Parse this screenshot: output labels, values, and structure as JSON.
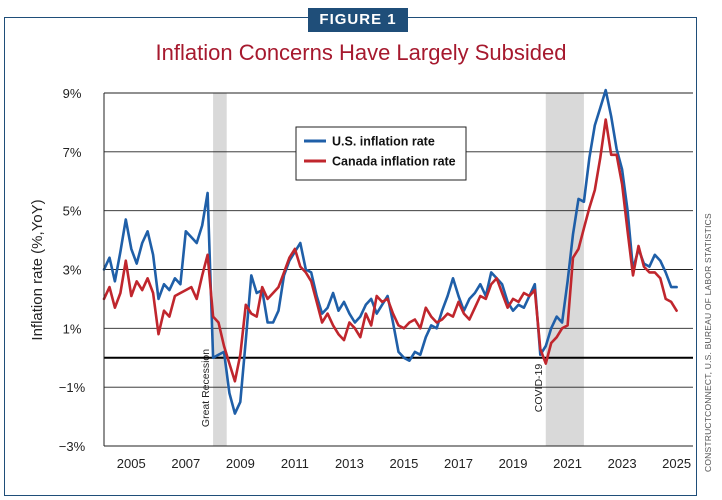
{
  "figure_label": "FIGURE 1",
  "source": "CONSTRUCTCONNECT, U.S. BUREAU OF LABOR STATISTICS",
  "colors": {
    "us": "#1f5fa8",
    "canada": "#c0262d",
    "title": "#a6192e",
    "shade": "#d9d9d9"
  },
  "chart_data": {
    "type": "line",
    "title": "Inflation Concerns Have Largely Subsided",
    "xlabel": "",
    "ylabel": "Inflation rate (%,YoY)",
    "ylim": [
      -3,
      9
    ],
    "xlim": [
      2004.0,
      2025.6
    ],
    "x_ticks": [
      2005,
      2007,
      2009,
      2011,
      2013,
      2015,
      2017,
      2019,
      2021,
      2023,
      2025
    ],
    "x_tick_labels": [
      "2005",
      "2007",
      "2009",
      "2011",
      "2013",
      "2015",
      "2017",
      "2019",
      "2021",
      "2023",
      "2025"
    ],
    "y_ticks": [
      -3,
      -1,
      1,
      3,
      5,
      7,
      9
    ],
    "y_tick_labels": [
      "−3%",
      "−1%",
      "1%",
      "3%",
      "5%",
      "7%",
      "9%"
    ],
    "grid": true,
    "zero_line": 0,
    "legend": [
      "U.S. inflation rate",
      "Canada inflation rate"
    ],
    "shaded_periods": [
      {
        "start": 2008.0,
        "end": 2008.5,
        "label": "Great Recession"
      },
      {
        "start": 2020.2,
        "end": 2021.6,
        "label": "COVID-19"
      }
    ],
    "series": [
      {
        "name": "U.S. inflation rate",
        "x": [
          2004.0,
          2004.2,
          2004.4,
          2004.6,
          2004.8,
          2005.0,
          2005.2,
          2005.4,
          2005.6,
          2005.8,
          2006.0,
          2006.2,
          2006.4,
          2006.6,
          2006.8,
          2007.0,
          2007.2,
          2007.4,
          2007.6,
          2007.8,
          2008.0,
          2008.2,
          2008.4,
          2008.6,
          2008.8,
          2009.0,
          2009.2,
          2009.4,
          2009.6,
          2009.8,
          2010.0,
          2010.2,
          2010.4,
          2010.6,
          2010.8,
          2011.0,
          2011.2,
          2011.4,
          2011.6,
          2011.8,
          2012.0,
          2012.2,
          2012.4,
          2012.6,
          2012.8,
          2013.0,
          2013.2,
          2013.4,
          2013.6,
          2013.8,
          2014.0,
          2014.2,
          2014.4,
          2014.6,
          2014.8,
          2015.0,
          2015.2,
          2015.4,
          2015.6,
          2015.8,
          2016.0,
          2016.2,
          2016.4,
          2016.6,
          2016.8,
          2017.0,
          2017.2,
          2017.4,
          2017.6,
          2017.8,
          2018.0,
          2018.2,
          2018.4,
          2018.6,
          2018.8,
          2019.0,
          2019.2,
          2019.4,
          2019.6,
          2019.8,
          2020.0,
          2020.2,
          2020.4,
          2020.6,
          2020.8,
          2021.0,
          2021.2,
          2021.4,
          2021.6,
          2021.8,
          2022.0,
          2022.2,
          2022.4,
          2022.6,
          2022.8,
          2023.0,
          2023.2,
          2023.4,
          2023.6,
          2023.8,
          2024.0,
          2024.2,
          2024.4,
          2024.6,
          2024.8,
          2025.0
        ],
        "values": [
          3.0,
          3.4,
          2.6,
          3.6,
          4.7,
          3.7,
          3.2,
          3.9,
          4.3,
          3.5,
          2.0,
          2.5,
          2.3,
          2.7,
          2.5,
          4.3,
          4.1,
          3.9,
          4.5,
          5.6,
          0.0,
          0.1,
          0.2,
          -1.2,
          -1.9,
          -1.5,
          0.6,
          2.8,
          2.2,
          2.3,
          1.2,
          1.2,
          1.6,
          2.8,
          3.3,
          3.6,
          3.9,
          3.0,
          2.9,
          2.1,
          1.5,
          1.7,
          2.2,
          1.6,
          1.9,
          1.5,
          1.2,
          1.4,
          1.8,
          2.0,
          1.5,
          1.8,
          2.1,
          1.2,
          0.2,
          0.0,
          -0.1,
          0.2,
          0.1,
          0.7,
          1.1,
          1.0,
          1.6,
          2.1,
          2.7,
          2.1,
          1.6,
          2.0,
          2.2,
          2.5,
          2.1,
          2.9,
          2.7,
          2.5,
          1.9,
          1.6,
          1.8,
          1.7,
          2.1,
          2.5,
          0.1,
          0.4,
          1.0,
          1.4,
          1.2,
          2.6,
          4.2,
          5.4,
          5.3,
          6.8,
          7.9,
          8.5,
          9.1,
          8.2,
          7.1,
          6.4,
          5.0,
          3.0,
          3.7,
          3.2,
          3.1,
          3.5,
          3.3,
          2.9,
          2.4,
          2.4
        ],
        "color": "#1f5fa8"
      },
      {
        "name": "Canada inflation rate",
        "x": [
          2004.0,
          2004.2,
          2004.4,
          2004.6,
          2004.8,
          2005.0,
          2005.2,
          2005.4,
          2005.6,
          2005.8,
          2006.0,
          2006.2,
          2006.4,
          2006.6,
          2006.8,
          2007.0,
          2007.2,
          2007.4,
          2007.6,
          2007.8,
          2008.0,
          2008.2,
          2008.4,
          2008.6,
          2008.8,
          2009.0,
          2009.2,
          2009.4,
          2009.6,
          2009.8,
          2010.0,
          2010.2,
          2010.4,
          2010.6,
          2010.8,
          2011.0,
          2011.2,
          2011.4,
          2011.6,
          2011.8,
          2012.0,
          2012.2,
          2012.4,
          2012.6,
          2012.8,
          2013.0,
          2013.2,
          2013.4,
          2013.6,
          2013.8,
          2014.0,
          2014.2,
          2014.4,
          2014.6,
          2014.8,
          2015.0,
          2015.2,
          2015.4,
          2015.6,
          2015.8,
          2016.0,
          2016.2,
          2016.4,
          2016.6,
          2016.8,
          2017.0,
          2017.2,
          2017.4,
          2017.6,
          2017.8,
          2018.0,
          2018.2,
          2018.4,
          2018.6,
          2018.8,
          2019.0,
          2019.2,
          2019.4,
          2019.6,
          2019.8,
          2020.0,
          2020.2,
          2020.4,
          2020.6,
          2020.8,
          2021.0,
          2021.2,
          2021.4,
          2021.6,
          2021.8,
          2022.0,
          2022.2,
          2022.4,
          2022.6,
          2022.8,
          2023.0,
          2023.2,
          2023.4,
          2023.6,
          2023.8,
          2024.0,
          2024.2,
          2024.4,
          2024.6,
          2024.8,
          2025.0
        ],
        "values": [
          2.0,
          2.4,
          1.7,
          2.2,
          3.3,
          2.1,
          2.6,
          2.3,
          2.7,
          2.2,
          0.8,
          1.6,
          1.4,
          2.1,
          2.2,
          2.3,
          2.4,
          2.0,
          2.8,
          3.5,
          1.4,
          1.2,
          0.4,
          -0.2,
          -0.8,
          0.1,
          1.8,
          1.5,
          1.4,
          2.4,
          2.0,
          2.2,
          2.4,
          2.9,
          3.4,
          3.7,
          3.1,
          2.9,
          2.6,
          1.9,
          1.2,
          1.5,
          1.1,
          0.8,
          0.6,
          1.2,
          1.0,
          0.7,
          1.5,
          1.1,
          2.1,
          1.9,
          2.0,
          1.5,
          1.1,
          1.0,
          1.2,
          1.3,
          1.0,
          1.7,
          1.4,
          1.2,
          1.3,
          1.5,
          1.4,
          1.9,
          1.5,
          1.3,
          1.7,
          2.1,
          2.0,
          2.5,
          2.7,
          2.2,
          1.7,
          2.0,
          1.9,
          2.2,
          2.1,
          2.3,
          0.3,
          -0.2,
          0.5,
          0.7,
          1.0,
          1.1,
          3.4,
          3.7,
          4.4,
          5.1,
          5.7,
          6.8,
          8.1,
          6.9,
          6.9,
          5.9,
          4.3,
          2.8,
          3.8,
          3.1,
          2.9,
          2.9,
          2.7,
          2.0,
          1.9,
          1.6
        ],
        "color": "#c0262d"
      }
    ]
  }
}
